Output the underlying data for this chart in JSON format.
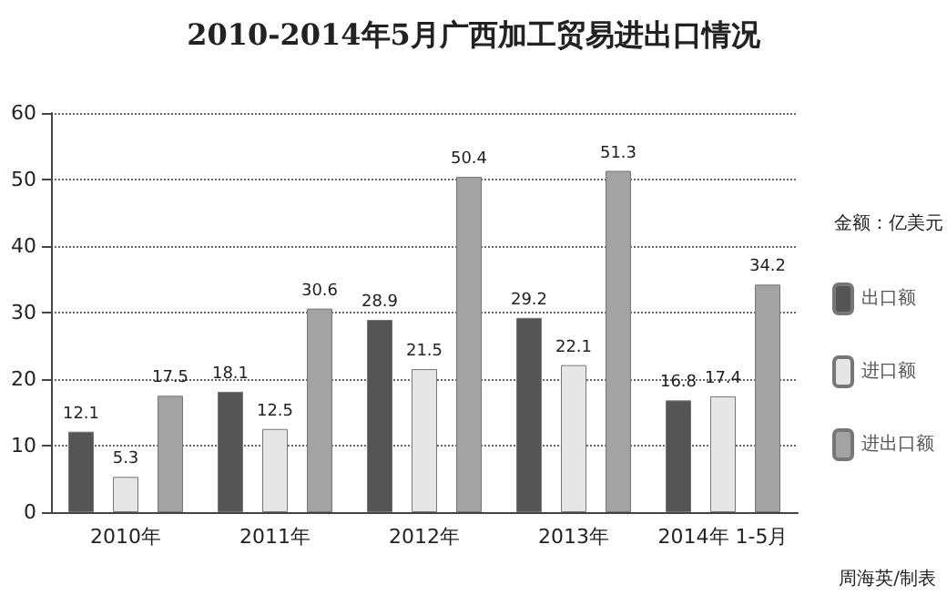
{
  "chart_data": {
    "type": "bar",
    "title": "2010-2014年5月广西加工贸易进出口情况",
    "categories": [
      "2010年",
      "2011年",
      "2012年",
      "2013年",
      "2014年 1-5月"
    ],
    "series": [
      {
        "name": "出口额",
        "color": "#555555",
        "values": [
          12.1,
          18.1,
          28.9,
          29.2,
          16.8
        ]
      },
      {
        "name": "进口额",
        "color": "#e6e6e6",
        "values": [
          5.3,
          12.5,
          21.5,
          22.1,
          17.4
        ]
      },
      {
        "name": "进出口额",
        "color": "#a3a3a3",
        "values": [
          17.5,
          30.6,
          50.4,
          51.3,
          34.2
        ]
      }
    ],
    "ylim": [
      0,
      60
    ],
    "yticks": [
      0,
      10,
      20,
      30,
      40,
      50,
      60
    ],
    "grid": "y",
    "legend": "right",
    "data_labels": true,
    "annotations": [
      "金额：亿美元",
      "周海英/制表"
    ]
  }
}
